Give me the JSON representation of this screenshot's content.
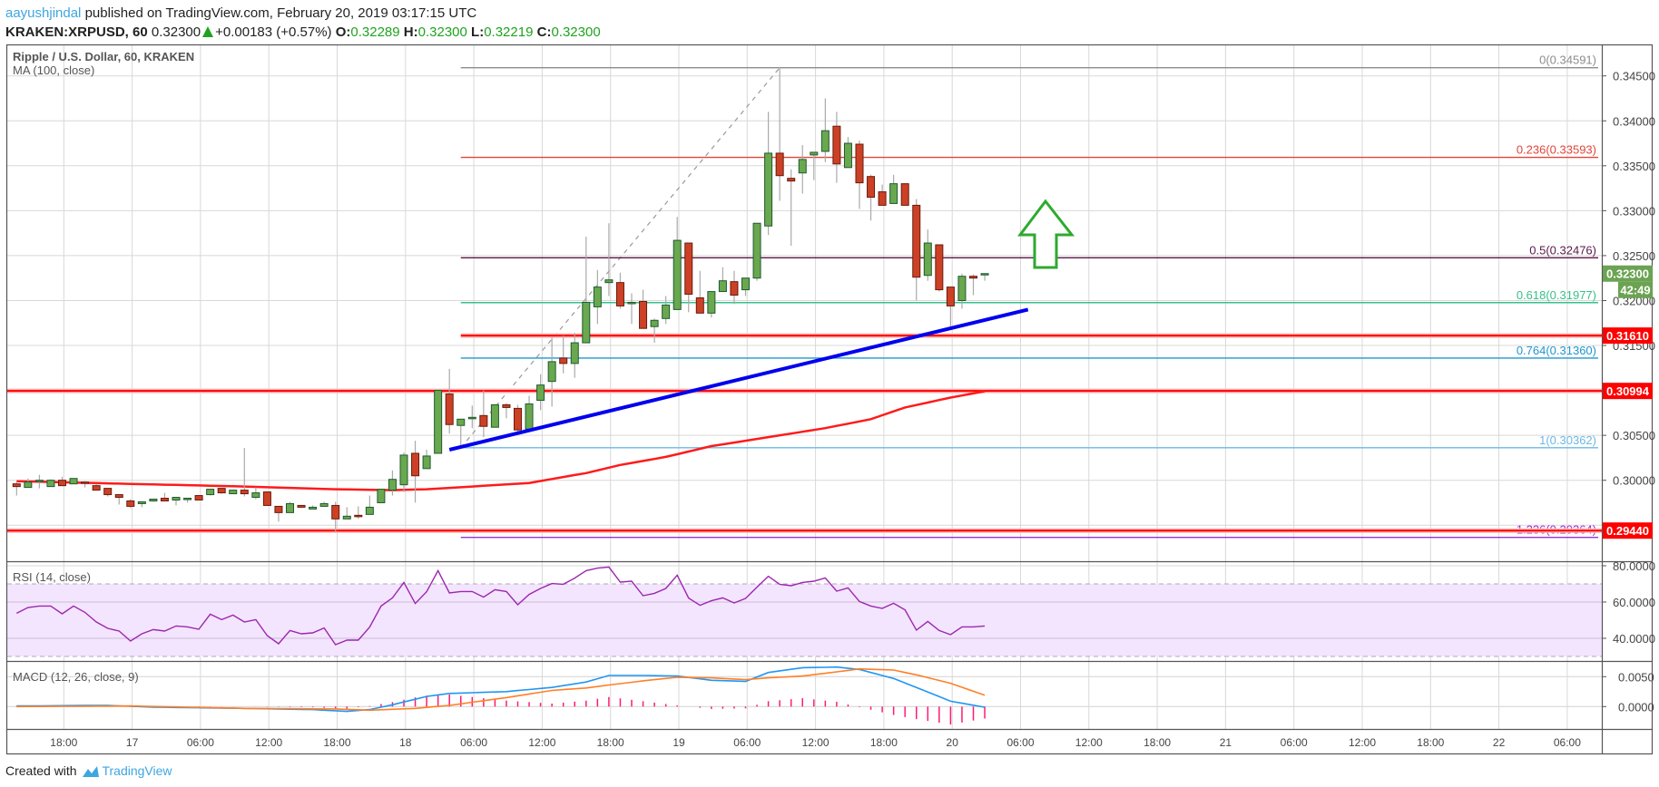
{
  "header": {
    "author": "aayushjindal",
    "published": "published on TradingView.com, February 20, 2019 03:17:15 UTC",
    "symbol": "KRAKEN:XRPUSD, 60",
    "last": "0.32300",
    "change": "+0.00183 (+0.57%)",
    "o_label": "O:",
    "o": "0.32289",
    "h_label": "H:",
    "h": "0.32300",
    "l_label": "L:",
    "l": "0.32219",
    "c_label": "C:",
    "c": "0.32300"
  },
  "legend": {
    "title": "Ripple / U.S. Dollar, 60, KRAKEN",
    "ma": "MA (100, close)",
    "rsi": "RSI (14, close)",
    "macd": "MACD (12, 26, close, 9)"
  },
  "colors": {
    "up": "#6aa84f",
    "up_border": "#1e5a30",
    "down": "#cc4125",
    "down_border": "#6a1a0e",
    "ma": "#ff1a1a",
    "trend": "#0000ee",
    "arrow": "#2eaa2e",
    "rsi": "#9c27b0",
    "rsi_band": "#f3e5fd",
    "macd": "#2196f3",
    "signal": "#ff7f27",
    "hist": "#ff1a75"
  },
  "chart_data": {
    "type": "candlestick",
    "candles_ohlc": [
      [
        0.2996,
        0.2998,
        0.2983,
        0.2993
      ],
      [
        0.2992,
        0.3002,
        0.2992,
        0.2998
      ],
      [
        0.2999,
        0.3006,
        0.2991,
        0.3
      ],
      [
        0.2993,
        0.3001,
        0.2993,
        0.3
      ],
      [
        0.3,
        0.3004,
        0.2994,
        0.2994
      ],
      [
        0.2996,
        0.3002,
        0.2996,
        0.3002
      ],
      [
        0.2998,
        0.2999,
        0.2992,
        0.2997
      ],
      [
        0.2994,
        0.2996,
        0.2989,
        0.2989
      ],
      [
        0.2991,
        0.2991,
        0.2982,
        0.2984
      ],
      [
        0.2984,
        0.2984,
        0.2973,
        0.2981
      ],
      [
        0.2977,
        0.2979,
        0.2969,
        0.2971
      ],
      [
        0.2974,
        0.2976,
        0.297,
        0.2976
      ],
      [
        0.2977,
        0.2979,
        0.2976,
        0.2979
      ],
      [
        0.298,
        0.2986,
        0.2977,
        0.2977
      ],
      [
        0.2978,
        0.2981,
        0.2972,
        0.2981
      ],
      [
        0.2979,
        0.298,
        0.2975,
        0.298
      ],
      [
        0.2983,
        0.2983,
        0.2978,
        0.2978
      ],
      [
        0.2984,
        0.299,
        0.2983,
        0.299
      ],
      [
        0.2991,
        0.2991,
        0.2985,
        0.2986
      ],
      [
        0.2985,
        0.2989,
        0.2985,
        0.2989
      ],
      [
        0.2989,
        0.3036,
        0.2982,
        0.2985
      ],
      [
        0.2981,
        0.2992,
        0.2979,
        0.2986
      ],
      [
        0.2987,
        0.2987,
        0.2972,
        0.2972
      ],
      [
        0.2971,
        0.2971,
        0.2954,
        0.2964
      ],
      [
        0.2964,
        0.2976,
        0.2964,
        0.2974
      ],
      [
        0.2972,
        0.2972,
        0.2969,
        0.297
      ],
      [
        0.2968,
        0.2972,
        0.2968,
        0.297
      ],
      [
        0.2971,
        0.2976,
        0.2971,
        0.2974
      ],
      [
        0.2972,
        0.2976,
        0.2942,
        0.2957
      ],
      [
        0.2957,
        0.297,
        0.2957,
        0.296
      ],
      [
        0.2961,
        0.2971,
        0.2957,
        0.296
      ],
      [
        0.2962,
        0.2983,
        0.2962,
        0.297
      ],
      [
        0.2975,
        0.299,
        0.2975,
        0.299
      ],
      [
        0.2989,
        0.3011,
        0.2983,
        0.3001
      ],
      [
        0.2995,
        0.3031,
        0.2987,
        0.3028
      ],
      [
        0.303,
        0.3044,
        0.2975,
        0.3005
      ],
      [
        0.3013,
        0.3034,
        0.3013,
        0.3027
      ],
      [
        0.303,
        0.31,
        0.303,
        0.31
      ],
      [
        0.3096,
        0.3124,
        0.3052,
        0.3062
      ],
      [
        0.3061,
        0.3068,
        0.3039,
        0.3068
      ],
      [
        0.3069,
        0.3083,
        0.3058,
        0.307
      ],
      [
        0.3072,
        0.31,
        0.3048,
        0.306
      ],
      [
        0.3059,
        0.3084,
        0.3059,
        0.3084
      ],
      [
        0.3084,
        0.3086,
        0.3069,
        0.3081
      ],
      [
        0.308,
        0.3084,
        0.3054,
        0.3056
      ],
      [
        0.3057,
        0.3094,
        0.3057,
        0.3085
      ],
      [
        0.3089,
        0.3118,
        0.3078,
        0.3106
      ],
      [
        0.311,
        0.3159,
        0.3082,
        0.3132
      ],
      [
        0.3136,
        0.3161,
        0.3119,
        0.313
      ],
      [
        0.313,
        0.3164,
        0.3114,
        0.3153
      ],
      [
        0.3153,
        0.3271,
        0.3153,
        0.3198
      ],
      [
        0.3193,
        0.3234,
        0.3174,
        0.3215
      ],
      [
        0.322,
        0.3286,
        0.3205,
        0.3223
      ],
      [
        0.322,
        0.3231,
        0.3191,
        0.3194
      ],
      [
        0.3197,
        0.3208,
        0.3174,
        0.3198
      ],
      [
        0.3199,
        0.3212,
        0.3169,
        0.3169
      ],
      [
        0.3171,
        0.318,
        0.3153,
        0.3178
      ],
      [
        0.318,
        0.3205,
        0.3174,
        0.3195
      ],
      [
        0.319,
        0.3293,
        0.319,
        0.3267
      ],
      [
        0.3264,
        0.3264,
        0.3187,
        0.3207
      ],
      [
        0.3203,
        0.3233,
        0.3186,
        0.3186
      ],
      [
        0.3186,
        0.321,
        0.3181,
        0.321
      ],
      [
        0.321,
        0.3237,
        0.321,
        0.3222
      ],
      [
        0.3221,
        0.3233,
        0.3196,
        0.3206
      ],
      [
        0.3212,
        0.3225,
        0.3205,
        0.3225
      ],
      [
        0.3225,
        0.3286,
        0.3222,
        0.3286
      ],
      [
        0.3283,
        0.341,
        0.3273,
        0.3364
      ],
      [
        0.3364,
        0.346,
        0.3311,
        0.3339
      ],
      [
        0.3336,
        0.3346,
        0.3261,
        0.3333
      ],
      [
        0.3342,
        0.3373,
        0.3319,
        0.3357
      ],
      [
        0.3362,
        0.3365,
        0.3334,
        0.3365
      ],
      [
        0.3366,
        0.3425,
        0.3354,
        0.3389
      ],
      [
        0.3394,
        0.341,
        0.3331,
        0.3352
      ],
      [
        0.3348,
        0.3382,
        0.3348,
        0.3375
      ],
      [
        0.3374,
        0.3378,
        0.3302,
        0.3331
      ],
      [
        0.3338,
        0.334,
        0.3289,
        0.3315
      ],
      [
        0.3321,
        0.3329,
        0.3306,
        0.3306
      ],
      [
        0.3308,
        0.334,
        0.3308,
        0.333
      ],
      [
        0.333,
        0.333,
        0.3306,
        0.3306
      ],
      [
        0.3306,
        0.3313,
        0.32,
        0.3226
      ],
      [
        0.3228,
        0.3279,
        0.3222,
        0.3264
      ],
      [
        0.3262,
        0.3262,
        0.321,
        0.3212
      ],
      [
        0.3215,
        0.3215,
        0.3168,
        0.3194
      ],
      [
        0.32,
        0.323,
        0.3191,
        0.3227
      ],
      [
        0.3227,
        0.3229,
        0.3206,
        0.3225
      ],
      [
        0.3229,
        0.323,
        0.3222,
        0.323
      ]
    ],
    "ma100_points": [
      [
        0,
        0.2999
      ],
      [
        10,
        0.2996
      ],
      [
        20,
        0.2993
      ],
      [
        28,
        0.299
      ],
      [
        33,
        0.2989
      ],
      [
        36,
        0.299
      ],
      [
        40,
        0.2993
      ],
      [
        45,
        0.2997
      ],
      [
        50,
        0.3008
      ],
      [
        53,
        0.3017
      ],
      [
        57,
        0.3026
      ],
      [
        61,
        0.3038
      ],
      [
        66,
        0.3048
      ],
      [
        71,
        0.3058
      ],
      [
        75,
        0.3068
      ],
      [
        78,
        0.3081
      ],
      [
        82,
        0.3092
      ],
      [
        85,
        0.3099
      ]
    ],
    "trendline": [
      [
        38,
        0.3034
      ],
      [
        88.8,
        0.319
      ]
    ],
    "fib_swing": [
      [
        39,
        0.30362
      ],
      [
        67,
        0.34591
      ]
    ],
    "fib_levels": [
      {
        "label": "0(0.34591)",
        "price": 0.34591,
        "color": "#8c8c8c"
      },
      {
        "label": "0.236(0.33593)",
        "price": 0.33593,
        "color": "#e0453a"
      },
      {
        "label": "0.5(0.32476)",
        "price": 0.32476,
        "color": "#5a1848"
      },
      {
        "label": "0.618(0.31977)",
        "price": 0.31977,
        "color": "#37c08c"
      },
      {
        "label": "0.764(0.31360)",
        "price": 0.3136,
        "color": "#2196d0"
      },
      {
        "label": "1(0.30362)",
        "price": 0.30362,
        "color": "#6cb8e4"
      },
      {
        "label": "1.236(0.29364)",
        "price": 0.29364,
        "color": "#9b30d0"
      }
    ],
    "horizontal_lines": [
      {
        "label": "0.31610",
        "price": 0.3161,
        "from_index": 39
      },
      {
        "label": "0.30994",
        "price": 0.30994,
        "from_index": -1
      },
      {
        "label": "0.29440",
        "price": 0.2944,
        "from_index": -1
      }
    ],
    "last_price_label": "0.32300",
    "countdown": "42:49",
    "price_ticks": [
      "0.34500",
      "0.34000",
      "0.33500",
      "0.33000",
      "0.32500",
      "0.32000",
      "0.31500",
      "0.30500",
      "0.30000"
    ],
    "rsi_ticks": [
      "80.0000",
      "60.0000",
      "40.0000"
    ],
    "macd_ticks": [
      "0.0050",
      "0.0000"
    ],
    "time_ticks": [
      "18:00",
      "17",
      "06:00",
      "12:00",
      "18:00",
      "18",
      "06:00",
      "12:00",
      "18:00",
      "19",
      "06:00",
      "12:00",
      "18:00",
      "20",
      "06:00",
      "12:00",
      "18:00",
      "21",
      "06:00",
      "12:00",
      "18:00",
      "22",
      "06:00"
    ],
    "rsi": [
      53.8,
      57,
      57.8,
      57.8,
      53.5,
      57.8,
      54.3,
      49,
      45.5,
      44,
      38.5,
      42.5,
      44.8,
      44,
      46.8,
      46.3,
      45,
      53.3,
      50.3,
      52.8,
      49,
      50.3,
      41.5,
      37,
      44.3,
      42.5,
      43,
      45.7,
      36.5,
      39,
      39,
      46.2,
      57.8,
      62.3,
      70.8,
      59.2,
      65.7,
      77.3,
      65,
      65.8,
      65.8,
      62.7,
      66.8,
      65.8,
      58.5,
      64.2,
      67.5,
      70.2,
      69.8,
      73.2,
      77.3,
      78.7,
      79.3,
      71,
      71.5,
      63.5,
      64.8,
      67.5,
      74.8,
      62.2,
      58.2,
      60.7,
      62.3,
      59.5,
      62,
      68.2,
      74.2,
      69.8,
      69,
      70.8,
      71.5,
      73.3,
      66,
      67.8,
      60.3,
      57.8,
      56.5,
      59.3,
      55.7,
      44.5,
      49.3,
      44.3,
      42,
      46.3,
      46.3,
      46.8
    ],
    "macd_points": [
      [
        0,
        0.0001
      ],
      [
        8,
        0.0002
      ],
      [
        12,
        -0.0001
      ],
      [
        20,
        -0.0003
      ],
      [
        26,
        -0.0005
      ],
      [
        29,
        -0.0008
      ],
      [
        31,
        -0.0005
      ],
      [
        33,
        0.0003
      ],
      [
        36,
        0.0017
      ],
      [
        38,
        0.0022
      ],
      [
        43,
        0.0025
      ],
      [
        47,
        0.0032
      ],
      [
        50,
        0.0041
      ],
      [
        52,
        0.0052
      ],
      [
        55,
        0.0052
      ],
      [
        58,
        0.0051
      ],
      [
        61,
        0.0044
      ],
      [
        64,
        0.0042
      ],
      [
        66,
        0.0057
      ],
      [
        69,
        0.0065
      ],
      [
        72,
        0.0066
      ],
      [
        74,
        0.0062
      ],
      [
        77,
        0.0047
      ],
      [
        79,
        0.0032
      ],
      [
        82,
        0.0009
      ],
      [
        85,
        -0.0001
      ]
    ],
    "signal_points": [
      [
        0,
        0.0
      ],
      [
        10,
        0.0001
      ],
      [
        20,
        -0.0003
      ],
      [
        28,
        -0.0004
      ],
      [
        31,
        -0.0006
      ],
      [
        35,
        -0.0003
      ],
      [
        38,
        0.0002
      ],
      [
        43,
        0.0015
      ],
      [
        47,
        0.0027
      ],
      [
        50,
        0.0031
      ],
      [
        52,
        0.0036
      ],
      [
        55,
        0.0043
      ],
      [
        58,
        0.0049
      ],
      [
        61,
        0.0048
      ],
      [
        64,
        0.0045
      ],
      [
        66,
        0.0048
      ],
      [
        69,
        0.0051
      ],
      [
        72,
        0.0058
      ],
      [
        74,
        0.0063
      ],
      [
        77,
        0.0061
      ],
      [
        79,
        0.0053
      ],
      [
        82,
        0.0039
      ],
      [
        85,
        0.0019
      ]
    ]
  },
  "footer": {
    "created": "Created with",
    "brand": "TradingView"
  }
}
